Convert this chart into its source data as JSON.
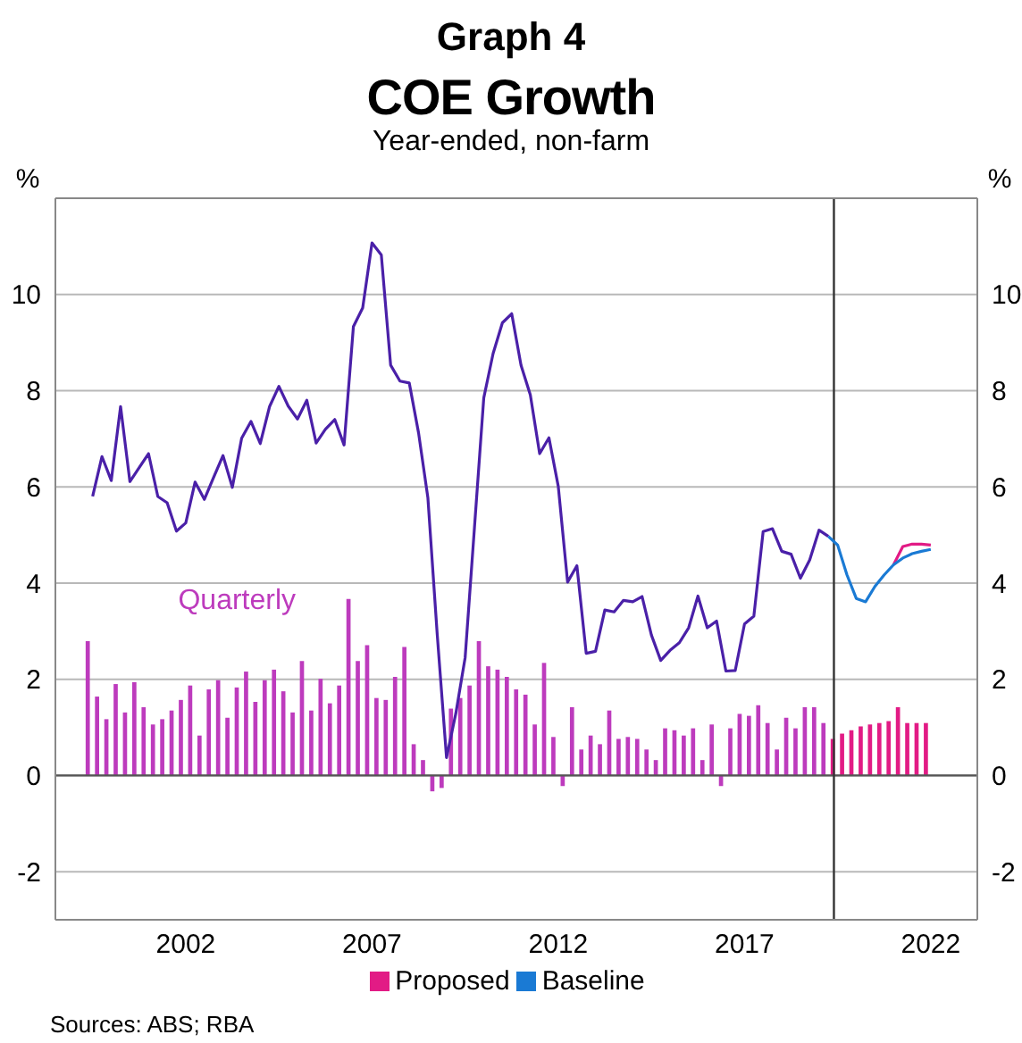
{
  "chart_data": {
    "type": "bar",
    "title": "Graph 4\nCOE Growth",
    "subtitle": "Year-ended, non-farm",
    "ylabel": "%",
    "y2label": "%",
    "xlim": [
      1999,
      2023.75
    ],
    "xticks": [
      {
        "value": 2002.5,
        "label": "2002"
      },
      {
        "value": 2007.5,
        "label": "2007"
      },
      {
        "value": 2012.5,
        "label": "2012"
      },
      {
        "value": 2017.5,
        "label": "2017"
      },
      {
        "value": 2022.5,
        "label": "2022"
      }
    ],
    "ylim": [
      -3,
      12
    ],
    "yticks": [
      -2,
      0,
      2,
      4,
      6,
      8,
      10
    ],
    "y2lim": [
      -3,
      12
    ],
    "y2ticks": [
      -2,
      0,
      2,
      4,
      6,
      8,
      10
    ],
    "grid": "y",
    "legend": "bottom",
    "ref_lines": [
      {
        "axis": "y",
        "value": 0,
        "color": "#555555"
      },
      {
        "axis": "x",
        "value": 2019.9,
        "color": "#333333"
      }
    ],
    "annotations": [
      "Sources: ABS; RBA"
    ],
    "series": [
      {
        "name": "Quarterly",
        "color": "#bd3bbd",
        "x": [
          1999.875,
          2000.125,
          2000.375,
          2000.625,
          2000.875,
          2001.125,
          2001.375,
          2001.625,
          2001.875,
          2002.125,
          2002.375,
          2002.625,
          2002.875,
          2003.125,
          2003.375,
          2003.625,
          2003.875,
          2004.125,
          2004.375,
          2004.625,
          2004.875,
          2005.125,
          2005.375,
          2005.625,
          2005.875,
          2006.125,
          2006.375,
          2006.625,
          2006.875,
          2007.125,
          2007.375,
          2007.625,
          2007.875,
          2008.125,
          2008.375,
          2008.625,
          2008.875,
          2009.125,
          2009.375,
          2009.625,
          2009.875,
          2010.125,
          2010.375,
          2010.625,
          2010.875,
          2011.125,
          2011.375,
          2011.625,
          2011.875,
          2012.125,
          2012.375,
          2012.625,
          2012.875,
          2013.125,
          2013.375,
          2013.625,
          2013.875,
          2014.125,
          2014.375,
          2014.625,
          2014.875,
          2015.125,
          2015.375,
          2015.625,
          2015.875,
          2016.125,
          2016.375,
          2016.625,
          2016.875,
          2017.125,
          2017.375,
          2017.625,
          2017.875,
          2018.125,
          2018.375,
          2018.625,
          2018.875,
          2019.125,
          2019.375,
          2019.625
        ],
        "values": [
          2.79,
          1.64,
          1.17,
          1.9,
          1.31,
          1.94,
          1.42,
          1.06,
          1.17,
          1.35,
          1.57,
          1.87,
          0.83,
          1.79,
          1.98,
          1.2,
          1.83,
          2.16,
          1.53,
          1.98,
          2.2,
          1.75,
          1.31,
          2.38,
          1.35,
          2.01,
          1.5,
          1.87,
          3.67,
          2.38,
          2.71,
          1.61,
          1.57,
          2.05,
          2.67,
          0.65,
          0.32,
          -0.33,
          -0.26,
          1.39,
          1.61,
          1.87,
          2.79,
          2.27,
          2.2,
          2.05,
          1.79,
          1.68,
          1.06,
          2.34,
          0.8,
          -0.22,
          1.42,
          0.54,
          0.83,
          0.65,
          1.35,
          0.76,
          0.8,
          0.76,
          0.54,
          0.32,
          0.98,
          0.94,
          0.83,
          0.98,
          0.32,
          1.06,
          -0.22,
          0.98,
          1.28,
          1.24,
          1.46,
          1.09,
          0.54,
          1.2,
          0.98,
          1.42,
          1.42,
          1.09
        ]
      },
      {
        "name": "Proposed",
        "color": "#e21b85",
        "x": [
          2019.875,
          2020.125,
          2020.375,
          2020.625,
          2020.875,
          2021.125,
          2021.375,
          2021.625,
          2021.875,
          2022.125,
          2022.375
        ],
        "values": [
          0.76,
          0.87,
          0.94,
          1.02,
          1.06,
          1.09,
          1.13,
          1.42,
          1.09,
          1.09,
          1.09
        ]
      },
      {
        "type": "line",
        "color": "#4a20a8",
        "x": [
          2000,
          2000.25,
          2000.5,
          2000.75,
          2001,
          2001.25,
          2001.5,
          2001.75,
          2002,
          2002.25,
          2002.5,
          2002.75,
          2003,
          2003.25,
          2003.5,
          2003.75,
          2004,
          2004.25,
          2004.5,
          2004.75,
          2005,
          2005.25,
          2005.5,
          2005.75,
          2006,
          2006.25,
          2006.5,
          2006.75,
          2007,
          2007.25,
          2007.5,
          2007.75,
          2008,
          2008.25,
          2008.5,
          2008.75,
          2009,
          2009.25,
          2009.5,
          2009.75,
          2010,
          2010.25,
          2010.5,
          2010.75,
          2011,
          2011.25,
          2011.5,
          2011.75,
          2012,
          2012.25,
          2012.5,
          2012.75,
          2013,
          2013.25,
          2013.5,
          2013.75,
          2014,
          2014.25,
          2014.5,
          2014.75,
          2015,
          2015.25,
          2015.5,
          2015.75,
          2016,
          2016.25,
          2016.5,
          2016.75,
          2017,
          2017.25,
          2017.5,
          2017.75,
          2018,
          2018.25,
          2018.5,
          2018.75,
          2019,
          2019.25,
          2019.5,
          2019.75
        ],
        "values": [
          5.8,
          6.63,
          6.13,
          7.67,
          6.11,
          6.4,
          6.69,
          5.8,
          5.67,
          5.08,
          5.25,
          6.1,
          5.74,
          6.2,
          6.65,
          5.99,
          7.01,
          7.36,
          6.9,
          7.67,
          8.09,
          7.68,
          7.41,
          7.8,
          6.91,
          7.2,
          7.4,
          6.87,
          9.33,
          9.72,
          11.07,
          10.82,
          8.53,
          8.2,
          8.16,
          7.12,
          5.77,
          2.94,
          0.37,
          1.29,
          2.45,
          5.15,
          7.85,
          8.77,
          9.41,
          9.6,
          8.53,
          7.91,
          6.69,
          7.02,
          6.01,
          4.02,
          4.36,
          2.54,
          2.58,
          3.44,
          3.4,
          3.64,
          3.61,
          3.72,
          2.92,
          2.39,
          2.6,
          2.76,
          3.07,
          3.73,
          3.07,
          3.21,
          2.17,
          2.18,
          3.15,
          3.31,
          5.07,
          5.13,
          4.66,
          4.6,
          4.1,
          4.48,
          5.1,
          4.97
        ]
      },
      {
        "type": "line",
        "color": "#e21b85",
        "x": [
          2021.5,
          2021.75,
          2022,
          2022.25,
          2022.5
        ],
        "values": [
          4.38,
          4.76,
          4.81,
          4.81,
          4.79
        ]
      },
      {
        "name": "Baseline",
        "type": "line",
        "color": "#1a7ad4",
        "x": [
          2019.75,
          2020,
          2020.25,
          2020.5,
          2020.75,
          2021,
          2021.25,
          2021.5,
          2021.75,
          2022,
          2022.25,
          2022.5
        ],
        "values": [
          4.97,
          4.79,
          4.17,
          3.68,
          3.61,
          3.93,
          4.17,
          4.38,
          4.52,
          4.61,
          4.66,
          4.7
        ]
      }
    ]
  }
}
